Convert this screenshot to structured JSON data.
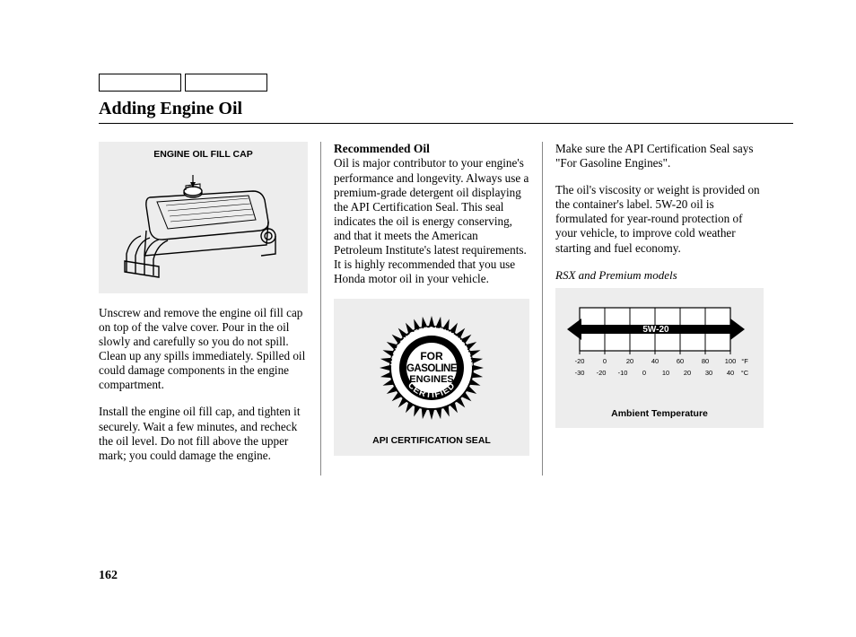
{
  "header": {
    "title": "Adding Engine Oil"
  },
  "page_number": "162",
  "col1": {
    "figure_title": "ENGINE OIL FILL CAP",
    "p1": "Unscrew and remove the engine oil fill cap on top of the valve cover. Pour in the oil slowly and carefully so you do not spill. Clean up any spills immediately. Spilled oil could damage components in the engine compartment.",
    "p2": "Install the engine oil fill cap, and tighten it securely. Wait a few minutes, and recheck the oil level. Do not fill above the upper mark; you could damage the engine."
  },
  "col2": {
    "subhead": "Recommended Oil",
    "p1": "Oil is major contributor to your engine's performance and longevity. Always use a premium-grade detergent oil displaying the API Certification Seal. This seal indicates the oil is energy conserving, and that it meets the American Petroleum Institute's latest requirements. It is highly recommended that you use Honda motor oil in your vehicle.",
    "seal": {
      "top_arc": "AMERICAN PETROLEUM INSTITUTE",
      "line1": "FOR",
      "line2": "GASOLINE",
      "line3": "ENGINES",
      "bottom_arc": "CERTIFIED",
      "caption": "API CERTIFICATION SEAL"
    }
  },
  "col3": {
    "p1": "Make sure the API Certification Seal says \"For Gasoline Engines\".",
    "p2": "The oil's viscosity or weight is provided on the container's label. 5W-20 oil is formulated for year-round protection of your vehicle, to improve cold weather starting and fuel economy.",
    "models_note": "RSX and Premium models",
    "temp_chart": {
      "oil_grade": "5W-20",
      "f_ticks": [
        "-20",
        "0",
        "20",
        "40",
        "60",
        "80",
        "100"
      ],
      "f_unit": "°F",
      "c_ticks": [
        "-30",
        "-20",
        "-10",
        "0",
        "10",
        "20",
        "30",
        "40"
      ],
      "c_unit": "°C",
      "caption": "Ambient Temperature"
    }
  },
  "colors": {
    "figure_bg": "#ededed",
    "text": "#000000",
    "rule": "#888888"
  }
}
